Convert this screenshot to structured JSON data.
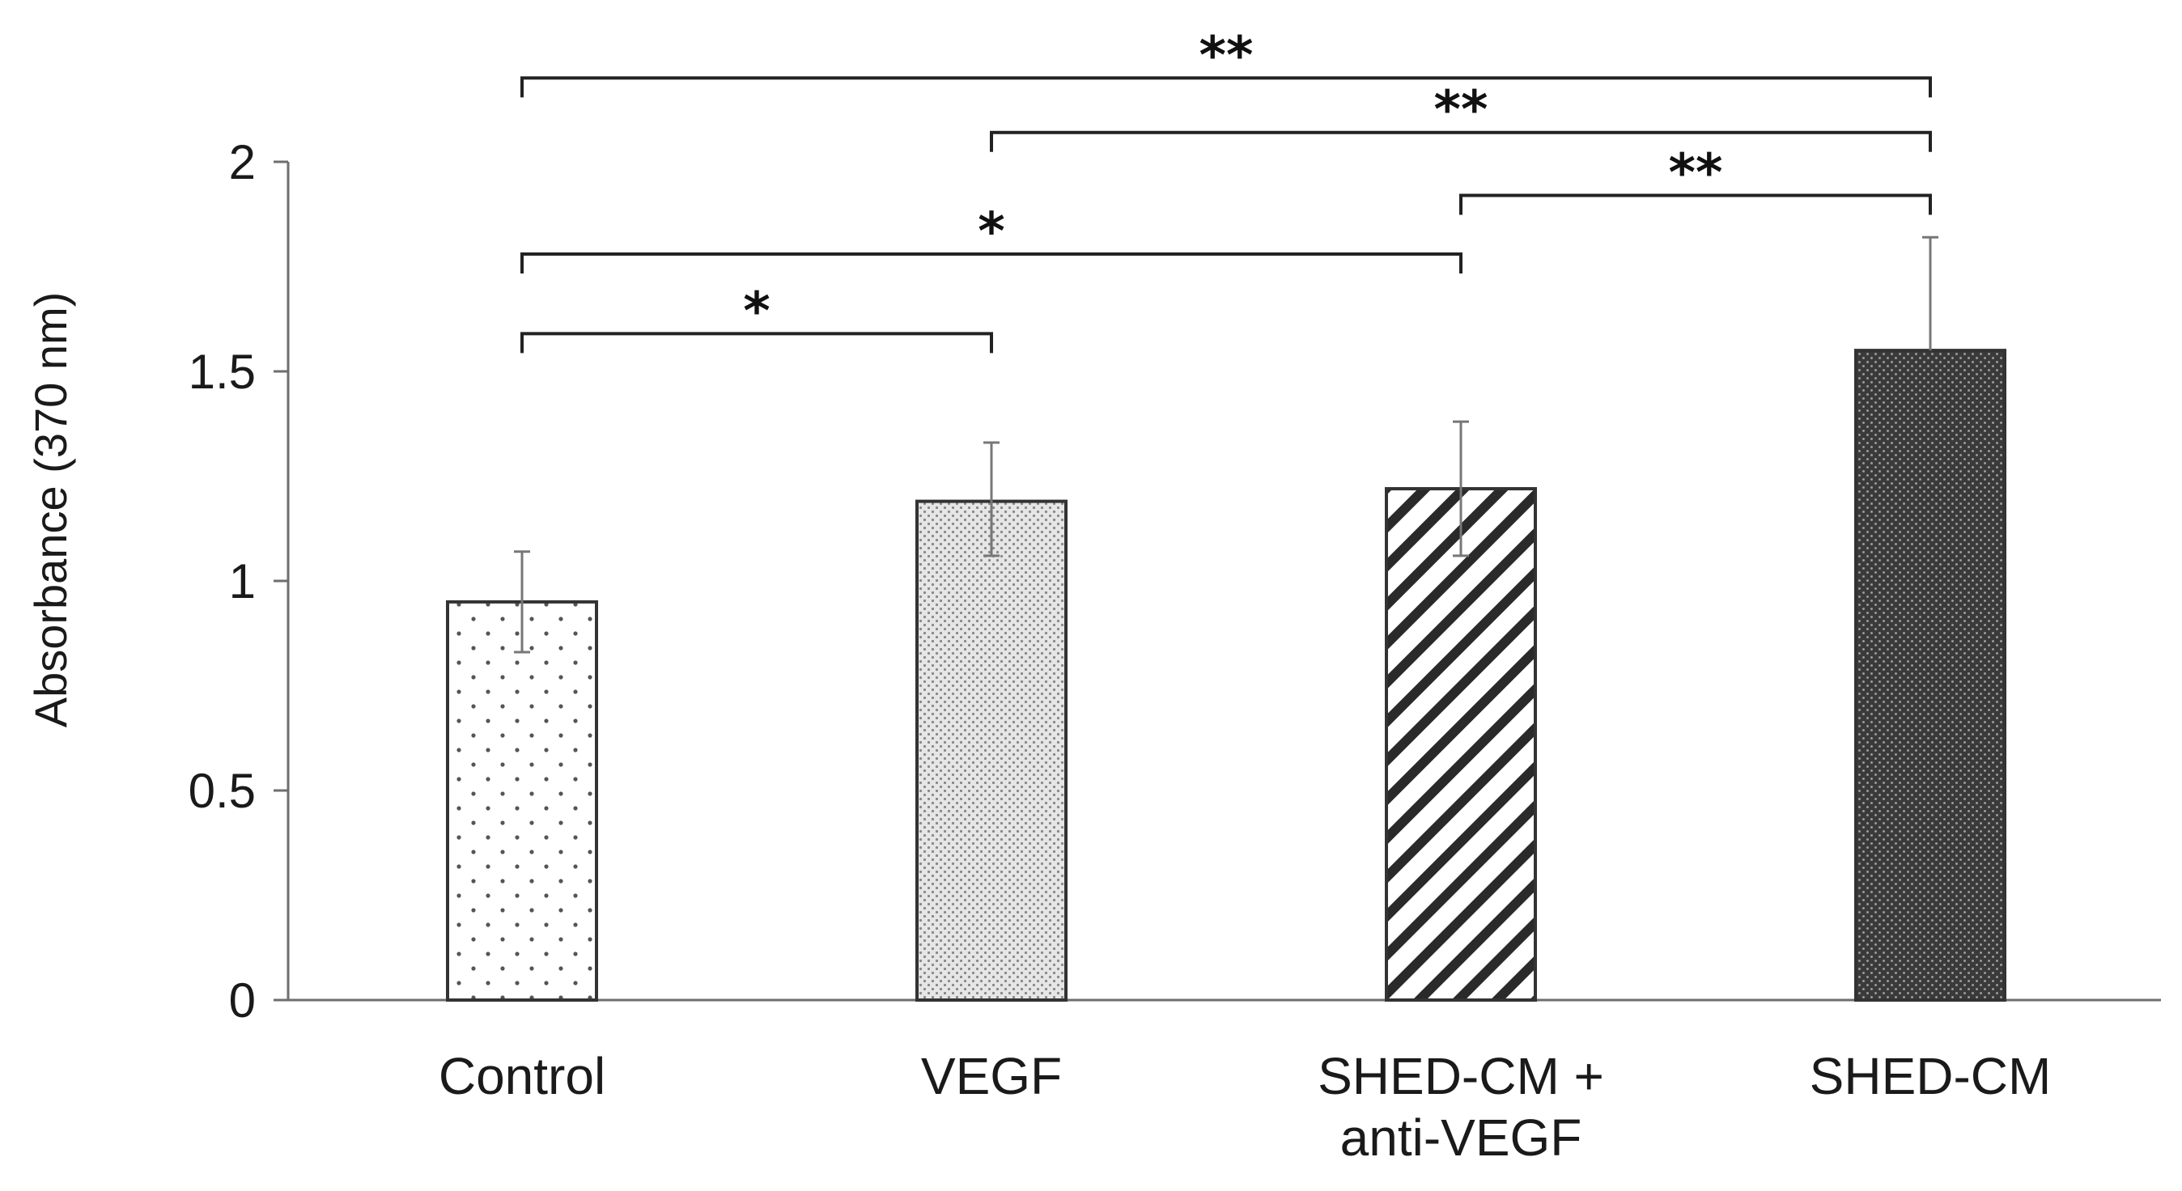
{
  "chart_data": {
    "type": "bar",
    "title": "",
    "xlabel": "",
    "ylabel": "Absorbance (370 nm)",
    "ylim": [
      0,
      2
    ],
    "yticks": [
      "0",
      "0.5",
      "1",
      "1.5",
      "2"
    ],
    "grid": false,
    "legend": "none",
    "categories": [
      {
        "lines": [
          "Control"
        ]
      },
      {
        "lines": [
          "VEGF"
        ]
      },
      {
        "lines": [
          "SHED-CM +",
          "anti-VEGF"
        ]
      },
      {
        "lines": [
          "SHED-CM"
        ]
      }
    ],
    "values": [
      0.95,
      1.19,
      1.22,
      1.55
    ],
    "error_upper": [
      0.12,
      0.14,
      0.16,
      0.27
    ],
    "error_lower": [
      0.12,
      0.13,
      0.16,
      0.0
    ],
    "bar_patterns": [
      "sparse-dots",
      "fine-dots",
      "diagonal-stripes",
      "dark-dots"
    ],
    "significance": [
      {
        "from": 0,
        "to": 3,
        "label": "**",
        "y": 2.2
      },
      {
        "from": 1,
        "to": 3,
        "label": "**",
        "y": 2.07
      },
      {
        "from": 2,
        "to": 3,
        "label": "**",
        "y": 1.92
      },
      {
        "from": 0,
        "to": 2,
        "label": "*",
        "y": 1.78
      },
      {
        "from": 0,
        "to": 1,
        "label": "*",
        "y": 1.59
      }
    ]
  }
}
